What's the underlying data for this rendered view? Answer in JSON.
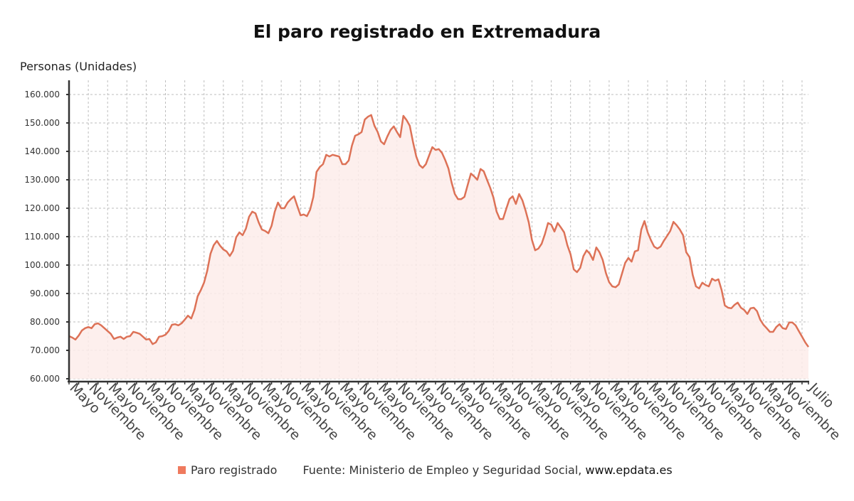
{
  "title": "El paro registrado en Extremadura",
  "colors": {
    "line": "#dd7257",
    "fill": "#fdecea",
    "legend_swatch": "#ef7a5e",
    "grid": "#bdbdbd",
    "axis": "#333333"
  },
  "legend": {
    "series_label": "Paro registrado",
    "source_prefix": "Fuente: Ministerio de Empleo y Seguridad Social,",
    "source_url": "www.epdata.es"
  },
  "chart_data": {
    "type": "area",
    "title": "El paro registrado en Extremadura",
    "ylabel": "Personas (Unidades)",
    "xlabel": "",
    "ylim": [
      60000,
      160000
    ],
    "yticks": [
      60000,
      70000,
      80000,
      90000,
      100000,
      110000,
      120000,
      130000,
      140000,
      150000,
      160000
    ],
    "ytick_labels": [
      "60.000",
      "70.000",
      "80.000",
      "90.000",
      "100.000",
      "110.000",
      "120.000",
      "130.000",
      "140.000",
      "150.000",
      "160.000"
    ],
    "x_unit": "month index (0 = first Mayo)",
    "xlim": [
      0,
      230
    ],
    "x_ticks": [
      {
        "m": 0,
        "label": "Mayo"
      },
      {
        "m": 6,
        "label": "Noviembre"
      },
      {
        "m": 12,
        "label": "Mayo"
      },
      {
        "m": 18,
        "label": "Noviembre"
      },
      {
        "m": 24,
        "label": "Mayo"
      },
      {
        "m": 30,
        "label": "Noviembre"
      },
      {
        "m": 36,
        "label": "Mayo"
      },
      {
        "m": 42,
        "label": "Noviembre"
      },
      {
        "m": 48,
        "label": "Mayo"
      },
      {
        "m": 54,
        "label": "Noviembre"
      },
      {
        "m": 60,
        "label": "Mayo"
      },
      {
        "m": 66,
        "label": "Noviembre"
      },
      {
        "m": 72,
        "label": "Mayo"
      },
      {
        "m": 78,
        "label": "Noviembre"
      },
      {
        "m": 84,
        "label": "Mayo"
      },
      {
        "m": 90,
        "label": "Noviembre"
      },
      {
        "m": 96,
        "label": "Mayo"
      },
      {
        "m": 102,
        "label": "Noviembre"
      },
      {
        "m": 108,
        "label": "Mayo"
      },
      {
        "m": 114,
        "label": "Noviembre"
      },
      {
        "m": 120,
        "label": "Mayo"
      },
      {
        "m": 126,
        "label": "Noviembre"
      },
      {
        "m": 132,
        "label": "Mayo"
      },
      {
        "m": 138,
        "label": "Noviembre"
      },
      {
        "m": 144,
        "label": "Mayo"
      },
      {
        "m": 150,
        "label": "Noviembre"
      },
      {
        "m": 156,
        "label": "Mayo"
      },
      {
        "m": 162,
        "label": "Noviembre"
      },
      {
        "m": 168,
        "label": "Mayo"
      },
      {
        "m": 174,
        "label": "Noviembre"
      },
      {
        "m": 180,
        "label": "Mayo"
      },
      {
        "m": 186,
        "label": "Noviembre"
      },
      {
        "m": 192,
        "label": "Mayo"
      },
      {
        "m": 198,
        "label": "Noviembre"
      },
      {
        "m": 204,
        "label": "Mayo"
      },
      {
        "m": 210,
        "label": "Noviembre"
      },
      {
        "m": 216,
        "label": "Mayo"
      },
      {
        "m": 222,
        "label": "Noviembre"
      },
      {
        "m": 230,
        "label": "Julio"
      }
    ],
    "grid": true,
    "legend_position": "bottom",
    "series": [
      {
        "name": "Paro registrado",
        "values": [
          75000,
          74500,
          73800,
          75200,
          77000,
          77800,
          78200,
          77800,
          79200,
          79500,
          78800,
          77800,
          76800,
          75800,
          74000,
          74500,
          74800,
          74000,
          74800,
          75000,
          76500,
          76200,
          75800,
          74800,
          73800,
          74000,
          72200,
          72800,
          74800,
          75000,
          75500,
          76800,
          79000,
          79200,
          78800,
          79500,
          80800,
          82200,
          81200,
          84200,
          89000,
          91200,
          93800,
          98000,
          104000,
          107000,
          108500,
          106800,
          105500,
          104800,
          103200,
          105000,
          109800,
          111500,
          110500,
          112800,
          117000,
          118800,
          118200,
          115000,
          112500,
          112000,
          111200,
          113800,
          118800,
          122000,
          120000,
          120000,
          122000,
          123200,
          124200,
          120800,
          117500,
          117800,
          117200,
          119500,
          124000,
          132800,
          134500,
          135500,
          138800,
          138200,
          138800,
          138500,
          138200,
          135500,
          135500,
          136800,
          142000,
          145500,
          146000,
          146800,
          151200,
          152200,
          152800,
          149000,
          146800,
          143500,
          142500,
          145200,
          147500,
          148800,
          146800,
          145000,
          152500,
          151000,
          149000,
          143200,
          138200,
          135200,
          134200,
          135500,
          138500,
          141500,
          140500,
          140800,
          139500,
          137000,
          134000,
          129000,
          125000,
          123200,
          123200,
          124000,
          128200,
          132200,
          131200,
          130000,
          133800,
          133000,
          130000,
          127200,
          123800,
          118800,
          116200,
          116200,
          119800,
          123200,
          124200,
          121500,
          125000,
          122800,
          119200,
          115000,
          108800,
          105200,
          105800,
          107500,
          110800,
          114800,
          114200,
          111800,
          114800,
          113200,
          111500,
          107000,
          103800,
          98500,
          97500,
          99000,
          103200,
          105200,
          104000,
          101800,
          106200,
          104500,
          101800,
          97200,
          94000,
          92500,
          92200,
          93200,
          97000,
          100800,
          102500,
          101200,
          104800,
          105200,
          112500,
          115500,
          111500,
          108800,
          106500,
          105800,
          106500,
          108500,
          110200,
          112000,
          115200,
          114000,
          112500,
          110500,
          104500,
          102800,
          96500,
          92500,
          91800,
          93800,
          93000,
          92500,
          95200,
          94500,
          95000,
          91200,
          85800,
          85000,
          84800,
          86000,
          86800,
          85000,
          84200,
          82800,
          84800,
          85000,
          83800,
          80800,
          79000,
          77800,
          76500,
          76500,
          78200,
          79200,
          77800,
          77500,
          79800,
          79800,
          78800,
          76800,
          74800,
          72800,
          71200
        ]
      }
    ]
  }
}
